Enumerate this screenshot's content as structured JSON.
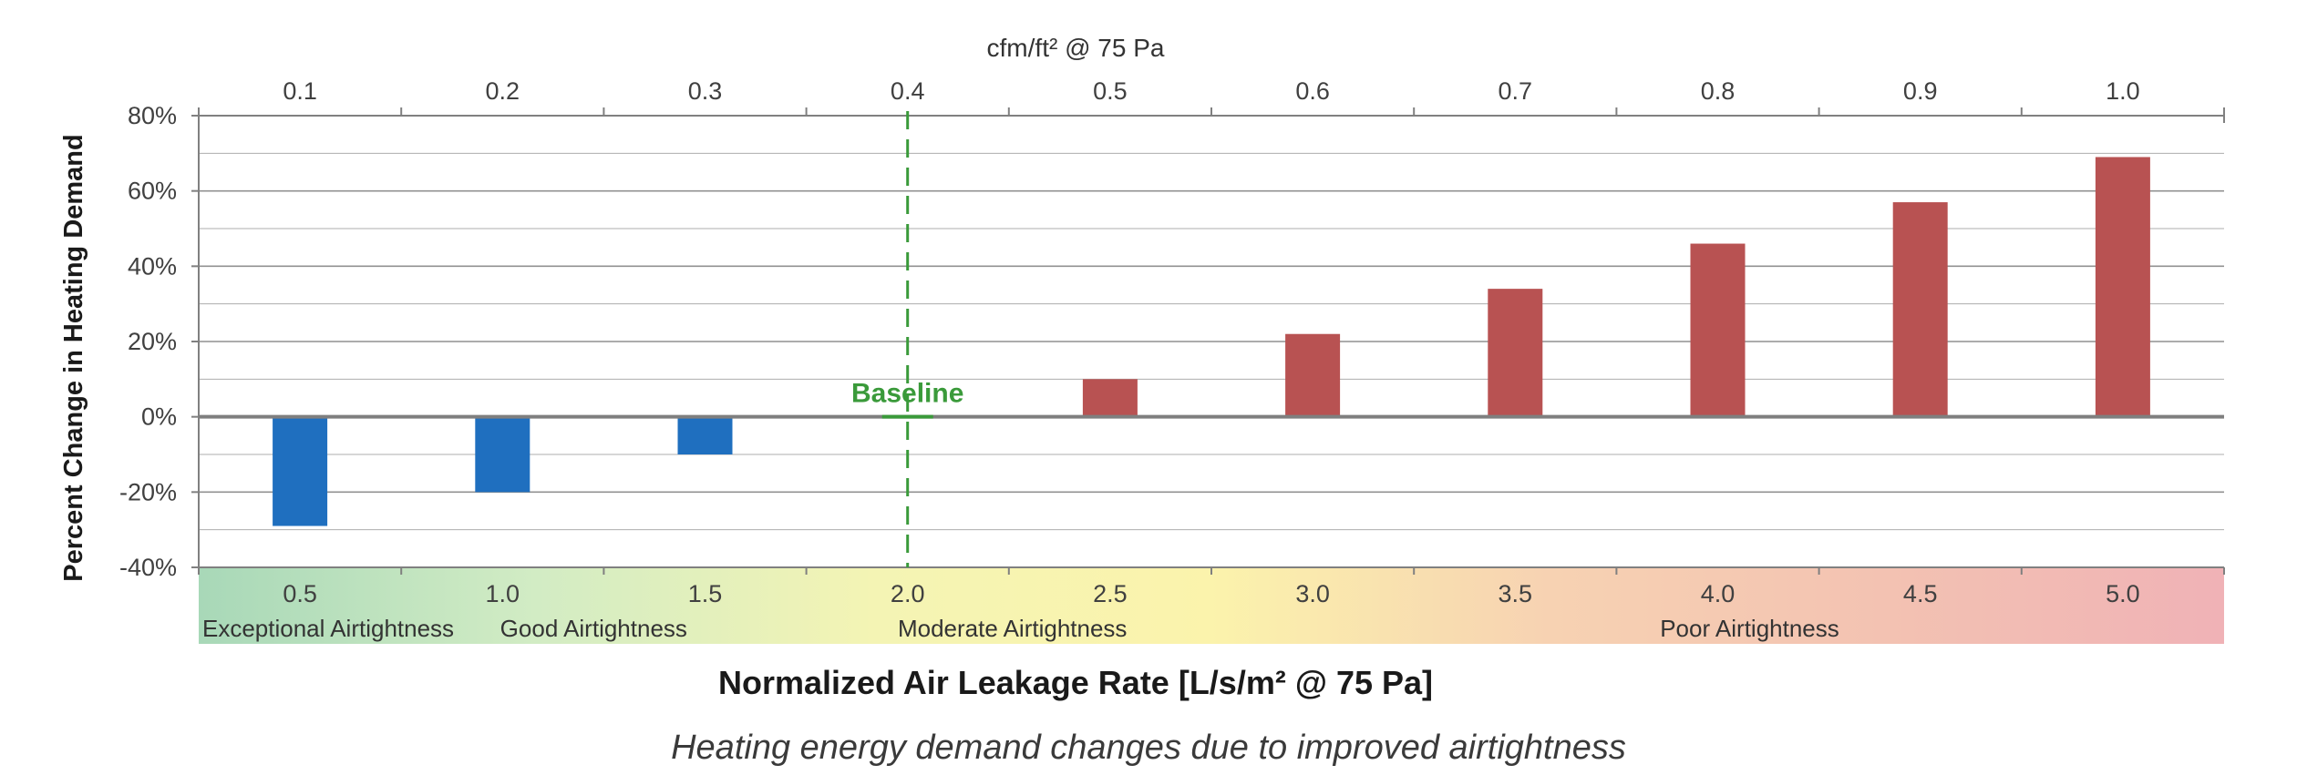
{
  "chart_data": {
    "type": "bar",
    "xlabel": "Normalized Air Leakage Rate [L/s/m² @ 75 Pa]",
    "xlabel_top": "cfm/ft² @ 75 Pa",
    "ylabel": "Percent Change in Heating Demand",
    "caption": "Heating energy demand changes due to improved airtightness",
    "categories": [
      "0.5",
      "1.0",
      "1.5",
      "2.0",
      "2.5",
      "3.0",
      "3.5",
      "4.0",
      "4.5",
      "5.0"
    ],
    "top_categories": [
      "0.1",
      "0.2",
      "0.3",
      "0.4",
      "0.5",
      "0.6",
      "0.7",
      "0.8",
      "0.9",
      "1.0"
    ],
    "values": [
      -29,
      -20,
      -10,
      0,
      10,
      22,
      34,
      46,
      57,
      69
    ],
    "ylim": [
      -40,
      80
    ],
    "yticks": [
      -40,
      -20,
      0,
      20,
      40,
      60,
      80
    ],
    "ytick_labels": [
      "-40%",
      "-20%",
      "0%",
      "20%",
      "40%",
      "60%",
      "80%"
    ],
    "minor_grid_step": 10,
    "grid": true,
    "baseline": {
      "category": "2.0",
      "label": "Baseline",
      "color": "#3a9a3a"
    },
    "colors": {
      "negative": "#1f6fbf",
      "positive": "#b85252",
      "zero_line": "#7f7f7f",
      "grid": "#8c8c8c"
    },
    "bands": [
      {
        "label": "Exceptional Airtightness",
        "anchor_index": 0
      },
      {
        "label": "Good Airtightness",
        "anchor_index": 1
      },
      {
        "label": "Moderate Airtightness",
        "anchor_index": 3
      },
      {
        "label": "Poor Airtightness",
        "anchor_index": 7
      }
    ],
    "band_gradient": [
      "#a8d8b8",
      "#d2ecc4",
      "#f4f4b4",
      "#fbf3ac",
      "#f7d2b2",
      "#f3c2b2",
      "#f0b2b6"
    ]
  }
}
